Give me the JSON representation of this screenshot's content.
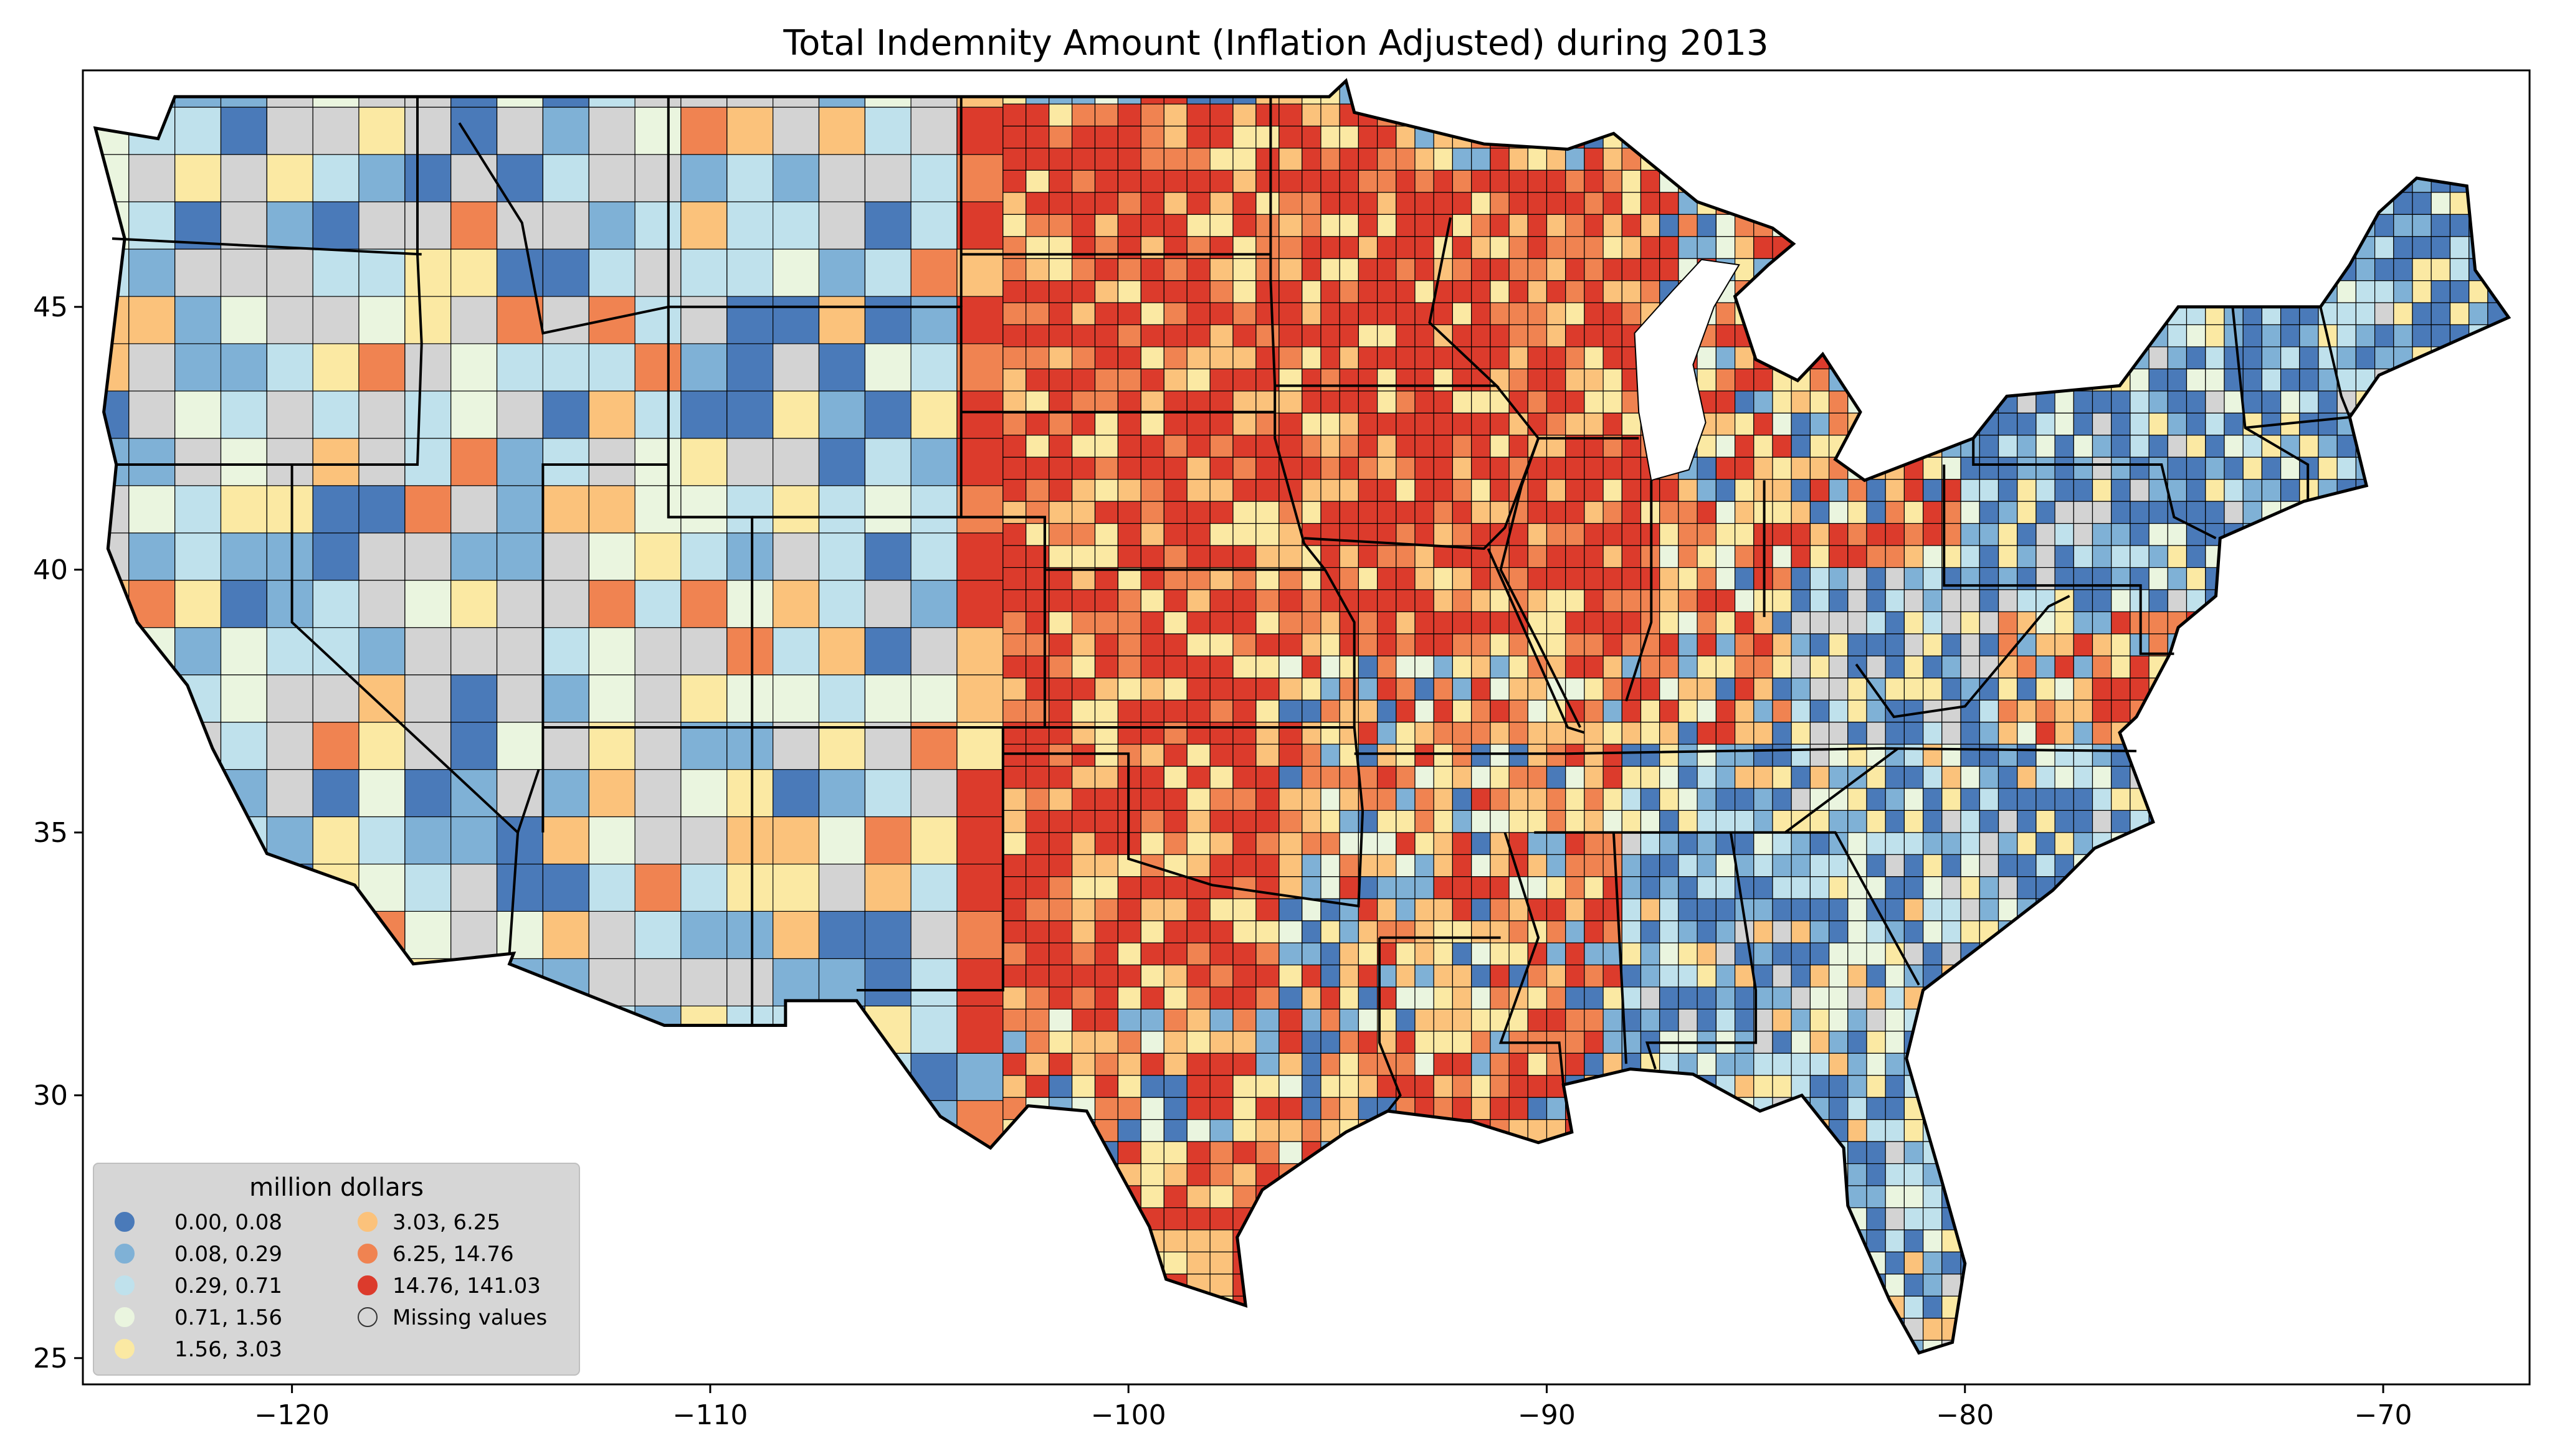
{
  "title": "Total Indemnity Amount  (Inflation Adjusted) during 2013",
  "map": {
    "lon_range": [
      -125,
      -66.5
    ],
    "lat_range": [
      24.5,
      49.5
    ],
    "x_ticks": [
      "−120",
      "−110",
      "−100",
      "−90",
      "−80",
      "−70"
    ],
    "x_tick_values": [
      -120,
      -110,
      -100,
      -90,
      -80,
      -70
    ],
    "y_ticks": [
      "25",
      "30",
      "35",
      "40",
      "45"
    ],
    "y_tick_values": [
      25,
      30,
      35,
      40,
      45
    ]
  },
  "legend": {
    "title": "million dollars",
    "placement": "lower-left",
    "items": [
      {
        "label": "0.00,   0.08",
        "color": "#4a7ab9"
      },
      {
        "label": "0.08,   0.29",
        "color": "#7fb1d6"
      },
      {
        "label": "0.29,   0.71",
        "color": "#bfe1ec"
      },
      {
        "label": "0.71,   1.56",
        "color": "#eaf5df"
      },
      {
        "label": "1.56,   3.03",
        "color": "#fbe9a3"
      },
      {
        "label": "3.03,   6.25",
        "color": "#fbc27b"
      },
      {
        "label": " 6.25,  14.76",
        "color": "#f08351"
      },
      {
        "label": "14.76, 141.03",
        "color": "#dc3b2c"
      },
      {
        "label": "Missing values",
        "color": "#d3d3d3"
      }
    ]
  },
  "colors": {
    "missing": "#d3d3d3",
    "state_border": "#000000",
    "county_border": "#000000"
  }
}
